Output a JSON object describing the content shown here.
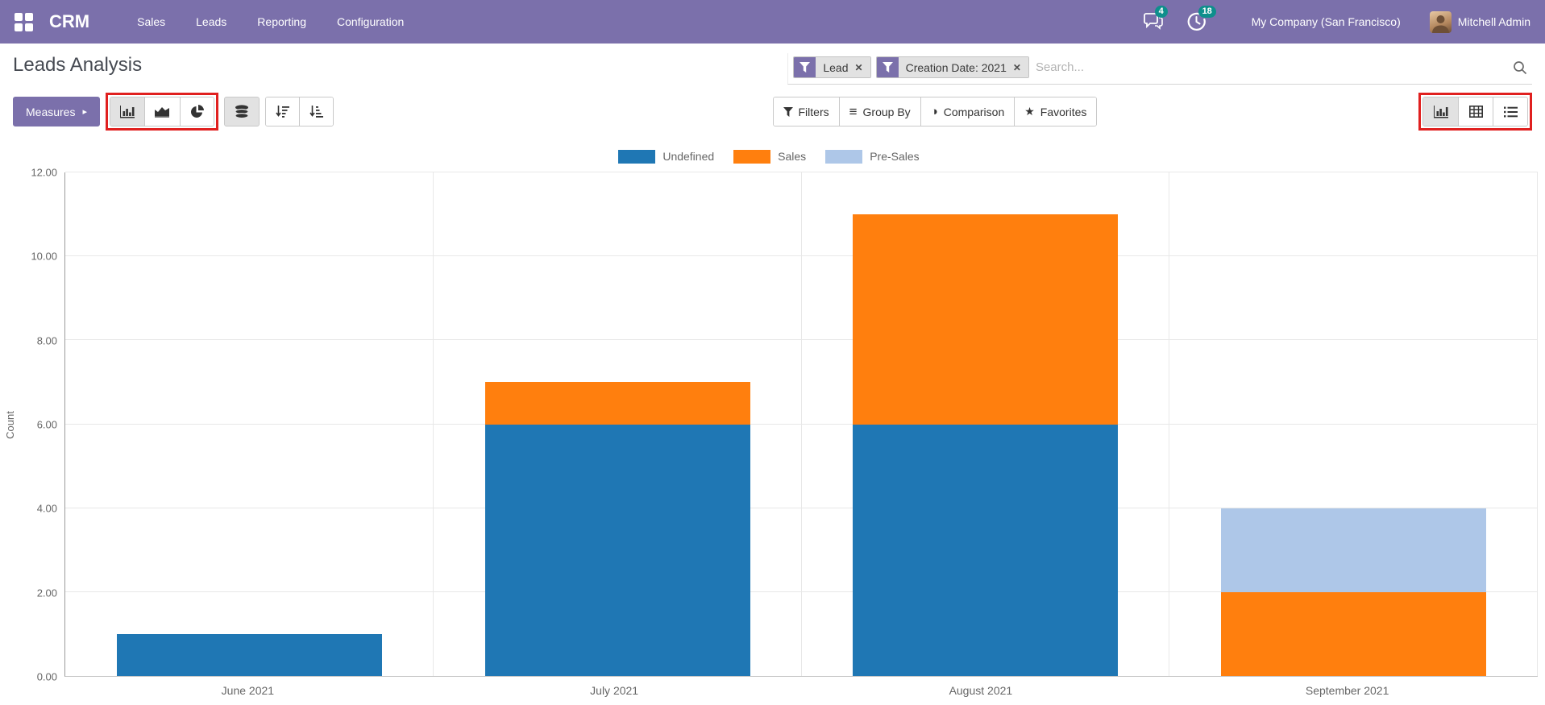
{
  "topbar": {
    "brand": "CRM",
    "menus": [
      "Sales",
      "Leads",
      "Reporting",
      "Configuration"
    ],
    "messages_badge": "4",
    "activities_badge": "18",
    "company": "My Company (San Francisco)",
    "user": "Mitchell Admin"
  },
  "control_panel": {
    "title": "Leads Analysis",
    "measures_label": "Measures",
    "search": {
      "facets": [
        {
          "label": "Lead"
        },
        {
          "label": "Creation Date: 2021"
        }
      ],
      "placeholder": "Search..."
    },
    "search_buttons": [
      {
        "label": "Filters"
      },
      {
        "label": "Group By"
      },
      {
        "label": "Comparison"
      },
      {
        "label": "Favorites"
      }
    ],
    "toolbar": {
      "chart_types": [
        "bar",
        "line",
        "pie"
      ],
      "active_chart_type": "bar",
      "stacked_active": true,
      "sort_buttons": [
        "descending",
        "ascending"
      ],
      "view_switcher": [
        "graph",
        "pivot",
        "list"
      ],
      "active_view": "graph"
    }
  },
  "icons": {
    "caret_right": "▸",
    "group_by": "≡",
    "comparison": "◑",
    "favorites": "★",
    "facet_remove": "✕"
  },
  "colors": {
    "topbar_purple": "#7b70ab",
    "badge_teal": "#0e8f8c",
    "annotation_red": "#e0201f"
  },
  "chart_data": {
    "type": "bar",
    "stacked": true,
    "categories": [
      "June 2021",
      "July 2021",
      "August 2021",
      "September 2021"
    ],
    "series": [
      {
        "name": "Undefined",
        "color": "#1f77b4",
        "values": [
          1,
          6,
          6,
          0
        ]
      },
      {
        "name": "Sales",
        "color": "#ff7f0e",
        "values": [
          0,
          1,
          5,
          2
        ]
      },
      {
        "name": "Pre-Sales",
        "color": "#aec7e8",
        "values": [
          0,
          0,
          0,
          2
        ]
      }
    ],
    "totals": [
      1,
      7,
      11,
      4
    ],
    "ylabel": "Count",
    "ylim": [
      0,
      12
    ],
    "yticks": [
      "0.00",
      "2.00",
      "4.00",
      "6.00",
      "8.00",
      "10.00",
      "12.00"
    ],
    "legend_position": "top",
    "grid": true
  }
}
